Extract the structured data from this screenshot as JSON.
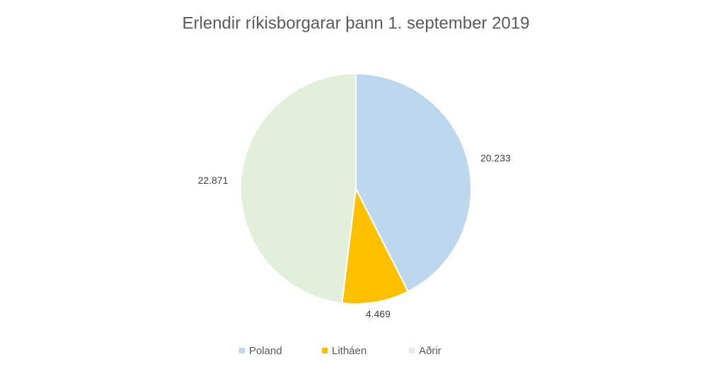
{
  "chart_data": {
    "type": "pie",
    "title": "Erlendir ríkisborgarar þann 1. september 2019",
    "categories": [
      "Poland",
      "Litháen",
      "Aðrir"
    ],
    "values": [
      20233,
      4469,
      22871
    ],
    "value_labels": [
      "20.233",
      "4.469",
      "22.871"
    ],
    "colors": [
      "#bdd7ee",
      "#ffc000",
      "#e2efda"
    ],
    "legend": "bottom"
  }
}
